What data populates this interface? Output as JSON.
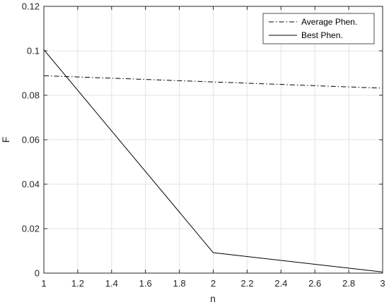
{
  "chart_data": {
    "type": "line",
    "title": "",
    "xlabel": "n",
    "ylabel": "F",
    "xlim": [
      1,
      3
    ],
    "ylim": [
      0,
      0.12
    ],
    "x_ticks": [
      "1",
      "1.2",
      "1.4",
      "1.6",
      "1.8",
      "2",
      "2.2",
      "2.4",
      "2.6",
      "2.8",
      "3"
    ],
    "y_ticks": [
      "0",
      "0.02",
      "0.04",
      "0.06",
      "0.08",
      "0.1",
      "0.12"
    ],
    "grid": true,
    "legend_position": "top-right",
    "series": [
      {
        "name": "Average Phen.",
        "line_style": "dash-dot",
        "color": "#000000",
        "x": [
          1,
          2,
          3
        ],
        "y": [
          0.0888,
          0.086,
          0.0832
        ]
      },
      {
        "name": "Best Phen.",
        "line_style": "solid",
        "color": "#000000",
        "x": [
          1,
          2,
          3
        ],
        "y": [
          0.1005,
          0.0092,
          0.0005
        ]
      }
    ]
  }
}
